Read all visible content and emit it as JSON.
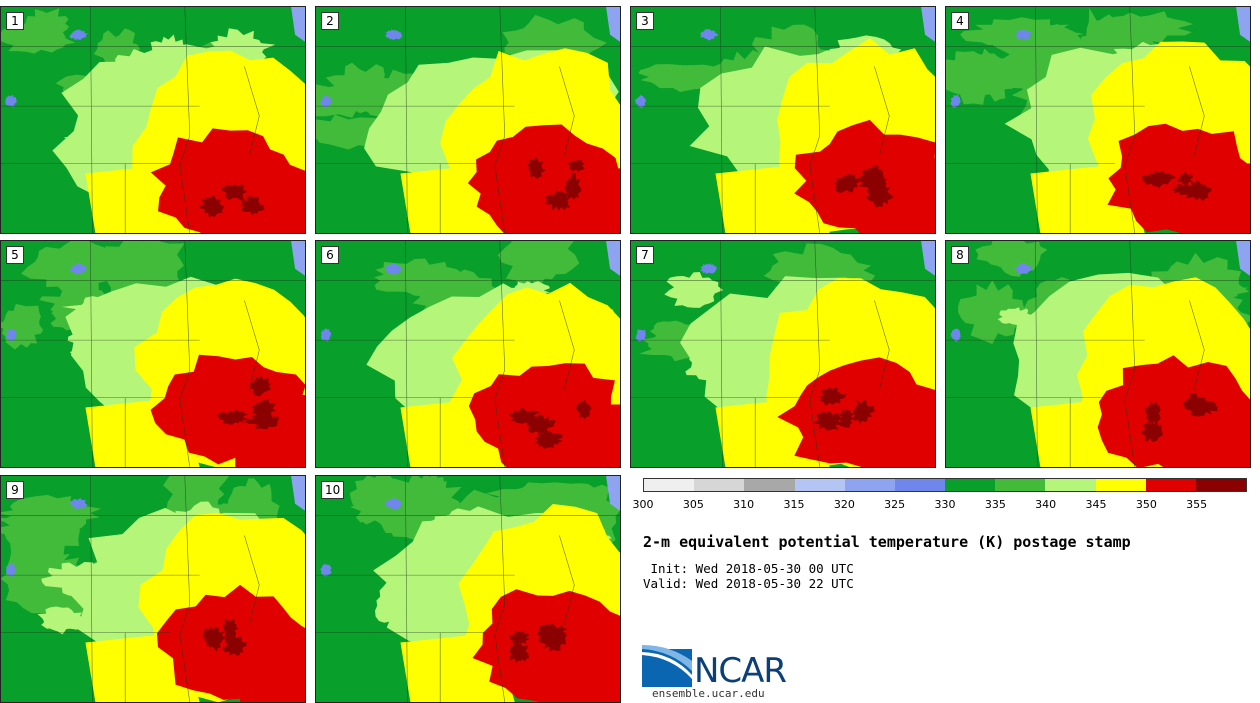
{
  "members": [
    {
      "label": "1"
    },
    {
      "label": "2"
    },
    {
      "label": "3"
    },
    {
      "label": "4"
    },
    {
      "label": "5"
    },
    {
      "label": "6"
    },
    {
      "label": "7"
    },
    {
      "label": "8"
    },
    {
      "label": "9"
    },
    {
      "label": "10"
    }
  ],
  "colorbar": {
    "ticks": [
      "300",
      "305",
      "310",
      "315",
      "320",
      "325",
      "330",
      "335",
      "340",
      "345",
      "350",
      "355"
    ],
    "bins": [
      {
        "min": 300,
        "max": 305,
        "color": "#efefef"
      },
      {
        "min": 305,
        "max": 310,
        "color": "#d6d6d6"
      },
      {
        "min": 310,
        "max": 315,
        "color": "#a8a8a8"
      },
      {
        "min": 315,
        "max": 320,
        "color": "#b4c4f4"
      },
      {
        "min": 320,
        "max": 325,
        "color": "#8ea4f0"
      },
      {
        "min": 325,
        "max": 330,
        "color": "#6f86ec"
      },
      {
        "min": 330,
        "max": 335,
        "color": "#089f2a"
      },
      {
        "min": 335,
        "max": 340,
        "color": "#42bb3b"
      },
      {
        "min": 340,
        "max": 345,
        "color": "#b5f57a"
      },
      {
        "min": 345,
        "max": 350,
        "color": "#ffff00"
      },
      {
        "min": 350,
        "max": 355,
        "color": "#e00000"
      },
      {
        "min": 355,
        "max": 360,
        "color": "#8b0000"
      }
    ]
  },
  "title": "2-m equivalent potential temperature (K) postage stamp",
  "init_line": " Init: Wed 2018-05-30 00 UTC",
  "valid_line": "Valid: Wed 2018-05-30 22 UTC",
  "logo": {
    "text": "NCAR",
    "url": "ensemble.ucar.edu"
  }
}
